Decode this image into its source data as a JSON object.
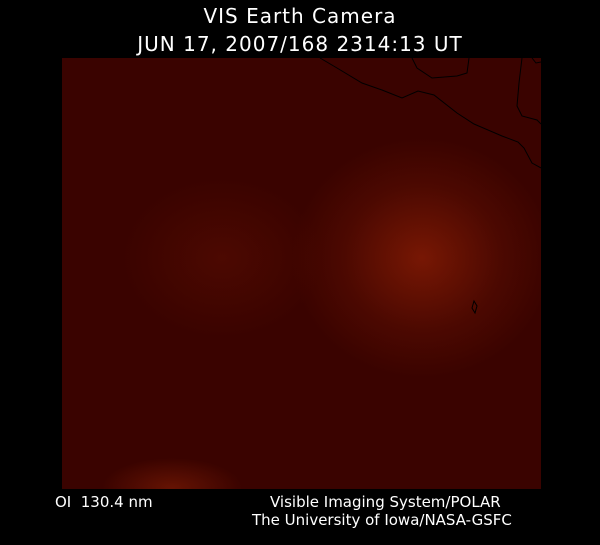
{
  "header": {
    "title": "VIS Earth Camera",
    "datetime": "JUN 17, 2007/168 2314:13 UT"
  },
  "footer": {
    "wavelength": "OI  130.4 nm",
    "credit_line1": "Visible Imaging System/POLAR",
    "credit_line2": "The University of Iowa/NASA-GSFC"
  },
  "image": {
    "base_color": "#3a0300",
    "glow_color": "#8a1a05",
    "coastline_color": "#000000"
  }
}
